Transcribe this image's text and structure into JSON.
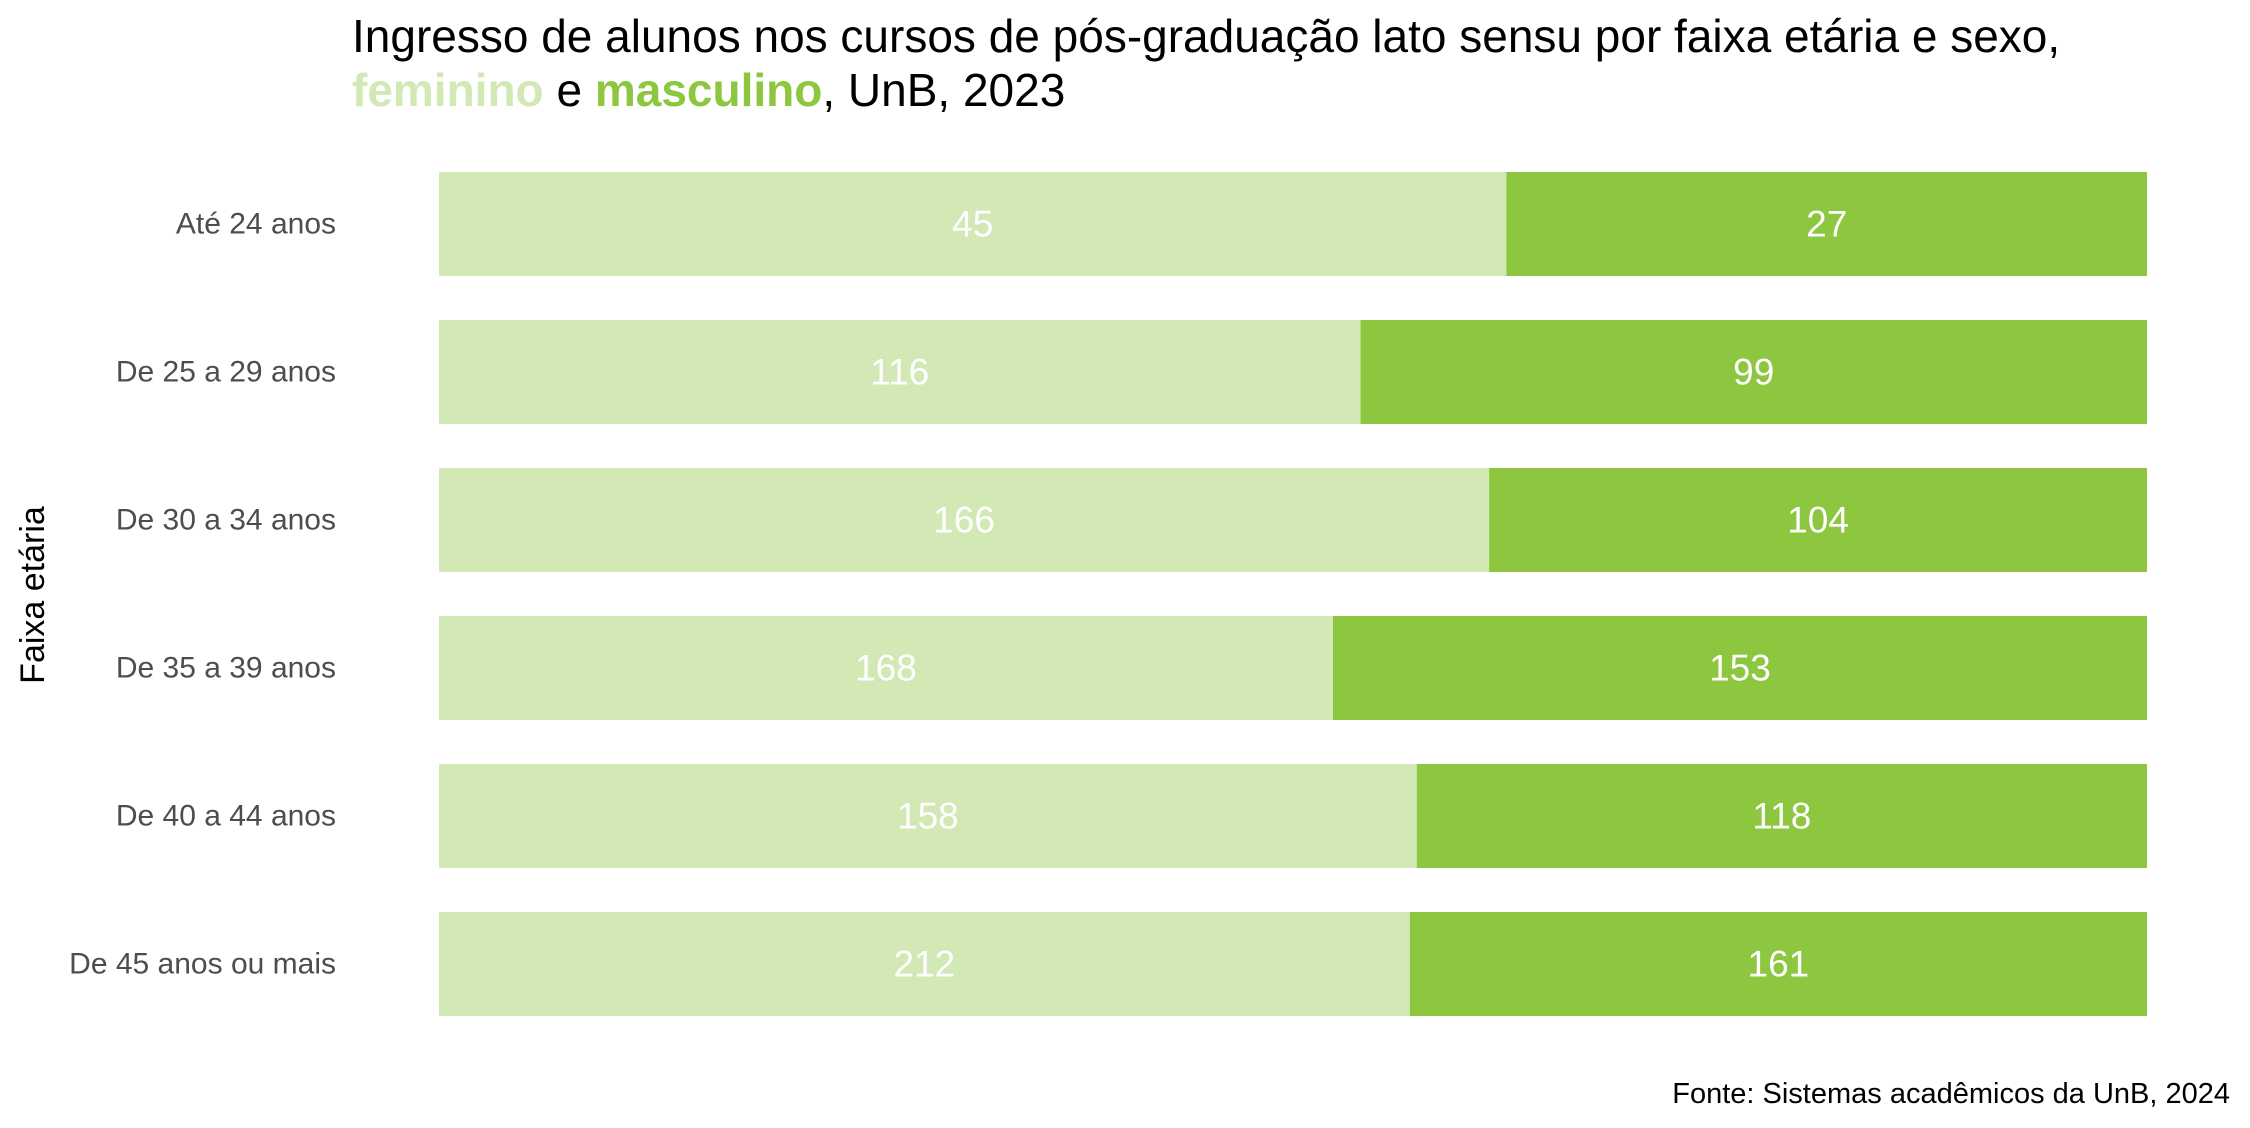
{
  "chart_data": {
    "type": "bar",
    "orientation": "horizontal",
    "stacking": "percent",
    "title": {
      "line1": "Ingresso de alunos nos cursos de pós-graduação lato sensu por faixa etária e sexo,",
      "line2_part1": "feminino",
      "line2_part2": " e ",
      "line2_part3": "masculino",
      "line2_part4": ", UnB, 2023"
    },
    "ylabel": "Faixa etária",
    "xlabel": "",
    "caption": "Fonte: Sistemas acadêmicos da UnB, 2024",
    "categories": [
      "Até 24 anos",
      "De 25 a 29 anos",
      "De 30 a 34 anos",
      "De 35 a 39 anos",
      "De 40 a 44 anos",
      "De 45 anos ou mais"
    ],
    "series": [
      {
        "key": "feminino",
        "color": "#d2e8b5",
        "values": [
          45,
          116,
          166,
          168,
          158,
          212
        ]
      },
      {
        "key": "masculino",
        "color": "#8dc63f",
        "values": [
          27,
          99,
          104,
          153,
          118,
          161
        ]
      }
    ],
    "legend": "none",
    "grid": false
  }
}
